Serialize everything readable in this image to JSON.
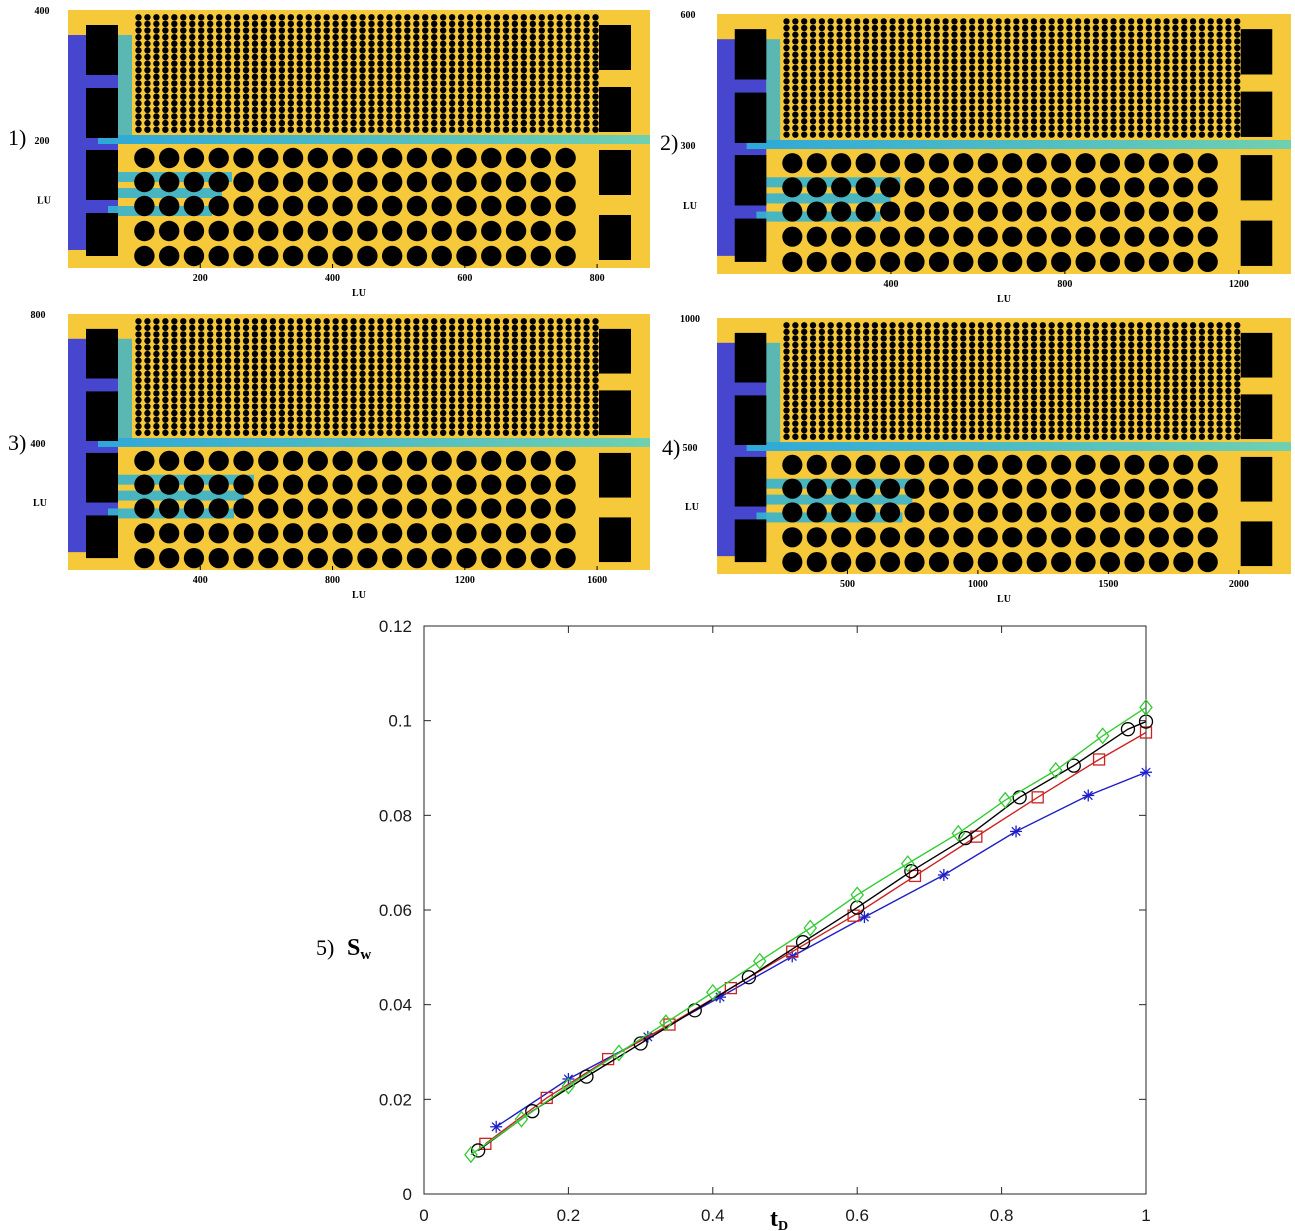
{
  "colors": {
    "background_fluid": "#f5c93a",
    "injected_fluid_dark": "#3d3fd6",
    "injected_fluid_light": "#35b3d0",
    "solid": "#000000"
  },
  "chart_data": [
    {
      "type": "heatmap",
      "panel_label": "1)",
      "xlabel": "LU",
      "ylabel": "LU",
      "x_ticks": [
        "200",
        "400",
        "600",
        "800"
      ],
      "y_ticks": [
        "400",
        "200"
      ],
      "xlim": [
        0,
        880
      ],
      "ylim": [
        0,
        400
      ],
      "large_grain_columns": 18,
      "front_columns": 3
    },
    {
      "type": "heatmap",
      "panel_label": "2)",
      "xlabel": "LU",
      "ylabel": "LU",
      "x_ticks": [
        "400",
        "800",
        "1200"
      ],
      "y_ticks": [
        "600",
        "300"
      ],
      "xlim": [
        0,
        1320
      ],
      "ylim": [
        0,
        600
      ],
      "large_grain_columns": 18,
      "front_columns": 4
    },
    {
      "type": "heatmap",
      "panel_label": "3)",
      "xlabel": "LU",
      "ylabel": "LU",
      "x_ticks": [
        "400",
        "800",
        "1200",
        "1600"
      ],
      "y_ticks": [
        "800",
        "400"
      ],
      "xlim": [
        0,
        1760
      ],
      "ylim": [
        0,
        800
      ],
      "large_grain_columns": 18,
      "front_columns": 4
    },
    {
      "type": "heatmap",
      "panel_label": "4)",
      "xlabel": "LU",
      "ylabel": "LU",
      "x_ticks": [
        "500",
        "1000",
        "1500",
        "2000"
      ],
      "y_ticks": [
        "1000",
        "500"
      ],
      "xlim": [
        0,
        2200
      ],
      "ylim": [
        0,
        1000
      ],
      "large_grain_columns": 18,
      "front_columns": 5
    },
    {
      "type": "line",
      "panel_label": "5)",
      "xlabel": "t",
      "xlabel_sub": "D",
      "ylabel": "S",
      "ylabel_sub": "w",
      "xlim": [
        0,
        1
      ],
      "ylim": [
        0,
        0.12
      ],
      "x_ticks": [
        "0",
        "0.2",
        "0.4",
        "0.6",
        "0.8",
        "1"
      ],
      "y_ticks": [
        "0",
        "0.02",
        "0.04",
        "0.06",
        "0.08",
        "0.1",
        "0.12"
      ],
      "grid": false,
      "series": [
        {
          "marker": "star",
          "color": "#1f1fc8",
          "x": [
            0.1,
            0.2,
            0.31,
            0.41,
            0.51,
            0.61,
            0.72,
            0.82,
            0.92,
            1.0
          ],
          "y": [
            0.0142,
            0.0243,
            0.0332,
            0.0416,
            0.0502,
            0.0585,
            0.0674,
            0.0766,
            0.0842,
            0.0891
          ]
        },
        {
          "marker": "square",
          "color": "#cc2222",
          "x": [
            0.085,
            0.17,
            0.255,
            0.34,
            0.425,
            0.51,
            0.595,
            0.68,
            0.765,
            0.85,
            0.935,
            1.0
          ],
          "y": [
            0.0106,
            0.0203,
            0.0285,
            0.0358,
            0.0435,
            0.0512,
            0.0588,
            0.0672,
            0.0755,
            0.0838,
            0.0918,
            0.0975
          ]
        },
        {
          "marker": "circle",
          "color": "#000000",
          "x": [
            0.075,
            0.15,
            0.225,
            0.3,
            0.375,
            0.45,
            0.525,
            0.6,
            0.675,
            0.75,
            0.825,
            0.9,
            0.975,
            1.0
          ],
          "y": [
            0.0092,
            0.0175,
            0.0248,
            0.0318,
            0.0388,
            0.0458,
            0.0532,
            0.0605,
            0.0682,
            0.0752,
            0.0838,
            0.0905,
            0.0982,
            0.0998
          ]
        },
        {
          "marker": "diamond",
          "color": "#33cc33",
          "x": [
            0.065,
            0.135,
            0.2,
            0.27,
            0.335,
            0.4,
            0.465,
            0.535,
            0.6,
            0.67,
            0.74,
            0.805,
            0.875,
            0.94,
            1.0
          ],
          "y": [
            0.0083,
            0.0158,
            0.0228,
            0.0298,
            0.0362,
            0.0426,
            0.0492,
            0.0562,
            0.0632,
            0.0698,
            0.0762,
            0.0832,
            0.0895,
            0.0968,
            0.1028
          ]
        }
      ]
    }
  ]
}
